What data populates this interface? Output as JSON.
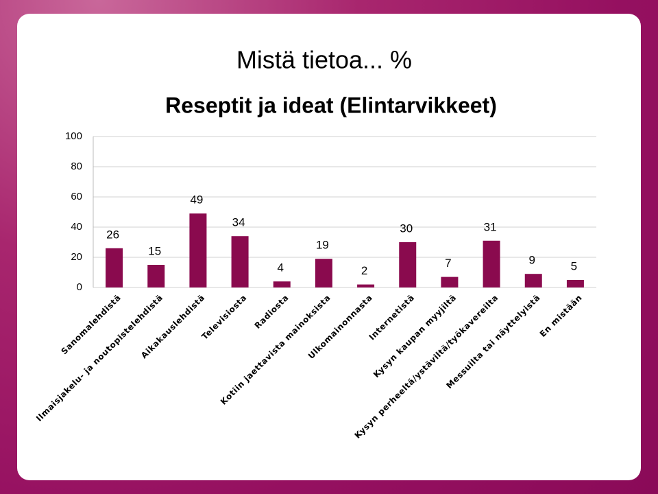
{
  "chart_data": {
    "type": "bar",
    "title": "Mistä tietoa... %",
    "subtitle": "Reseptit ja ideat (Elintarvikkeet)",
    "categories": [
      "Sanomalehdistä",
      "Ilmaisjakelu- ja noutopistelehdistä",
      "Aikakauslehdistä",
      "Televisiosta",
      "Radiosta",
      "Kotiin jaettavista mainoksista",
      "Ulkomainonnasta",
      "Internetistä",
      "Kysyn kaupan myyjiltä",
      "Kysyn perheeltä/ystäviltä/työkavereilta",
      "Messuilta tai näyttelyistä",
      "En mistään"
    ],
    "values": [
      26,
      15,
      49,
      34,
      4,
      19,
      2,
      30,
      7,
      31,
      9,
      5
    ],
    "color": "#8a0a4e",
    "ylim": [
      0,
      100
    ],
    "yticks": [
      0,
      20,
      40,
      60,
      80,
      100
    ],
    "grid": true
  }
}
